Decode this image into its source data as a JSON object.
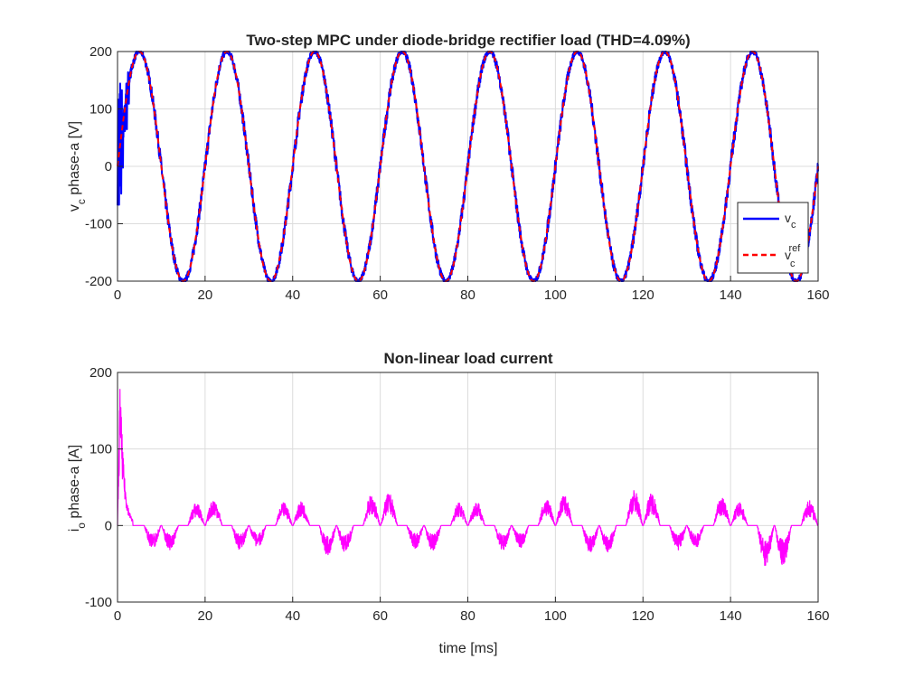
{
  "colors": {
    "vc": "#0000ff",
    "vref": "#ff0000",
    "io": "#ff00ff",
    "grid": "#dcdcdc",
    "axis": "#262626"
  },
  "chart_data": [
    {
      "type": "line",
      "title": "Two-step MPC under diode-bridge rectifier load (THD=4.09%)",
      "xlabel": "",
      "ylabel": {
        "main": "v",
        "sub": "c",
        "rest": " phase-a [V]"
      },
      "xlim": [
        0,
        160
      ],
      "ylim": [
        -200,
        200
      ],
      "xticks": [
        0,
        20,
        40,
        60,
        80,
        100,
        120,
        140,
        160
      ],
      "yticks": [
        -200,
        -100,
        0,
        100,
        200
      ],
      "grid": true,
      "legend_position": "bottom-right",
      "series": [
        {
          "name": "v_c",
          "legend": {
            "main": "v",
            "sub": "c",
            "sup": ""
          },
          "style": "solid",
          "amplitude": 200,
          "frequency_hz": 50,
          "startup_transient_ms": [
            0,
            3
          ],
          "ripple": "high-frequency switching ripple"
        },
        {
          "name": "v_c^ref",
          "legend": {
            "main": "v",
            "sub": "c",
            "sup": "ref"
          },
          "style": "dashed",
          "amplitude": 200,
          "frequency_hz": 50
        }
      ]
    },
    {
      "type": "line",
      "title": "Non-linear load current",
      "xlabel": "time [ms]",
      "ylabel": {
        "main": "i",
        "sub": "o",
        "rest": " phase-a [A]"
      },
      "xlim": [
        0,
        160
      ],
      "ylim": [
        -100,
        200
      ],
      "xticks": [
        0,
        20,
        40,
        60,
        80,
        100,
        120,
        140,
        160
      ],
      "yticks": [
        -100,
        0,
        100,
        200
      ],
      "grid": true,
      "series": [
        {
          "name": "i_o",
          "startup_peak": {
            "x": 0.6,
            "y": 195
          },
          "pulses": [
            {
              "center": 8,
              "peak": -30
            },
            {
              "center": 12,
              "peak": -32
            },
            {
              "center": 18,
              "peak": 30
            },
            {
              "center": 22,
              "peak": 35
            },
            {
              "center": 28,
              "peak": -32
            },
            {
              "center": 32,
              "peak": -30
            },
            {
              "center": 38,
              "peak": 30
            },
            {
              "center": 42,
              "peak": 31
            },
            {
              "center": 48,
              "peak": -40
            },
            {
              "center": 52,
              "peak": -35
            },
            {
              "center": 58,
              "peak": 40
            },
            {
              "center": 62,
              "peak": 42
            },
            {
              "center": 68,
              "peak": -30
            },
            {
              "center": 72,
              "peak": -33
            },
            {
              "center": 78,
              "peak": 30
            },
            {
              "center": 82,
              "peak": 31
            },
            {
              "center": 88,
              "peak": -32
            },
            {
              "center": 92,
              "peak": -30
            },
            {
              "center": 98,
              "peak": 35
            },
            {
              "center": 102,
              "peak": 40
            },
            {
              "center": 108,
              "peak": -36
            },
            {
              "center": 112,
              "peak": -35
            },
            {
              "center": 118,
              "peak": 47
            },
            {
              "center": 122,
              "peak": 43
            },
            {
              "center": 128,
              "peak": -32
            },
            {
              "center": 132,
              "peak": -30
            },
            {
              "center": 138,
              "peak": 38
            },
            {
              "center": 142,
              "peak": 30
            },
            {
              "center": 148,
              "peak": -53
            },
            {
              "center": 152,
              "peak": -52
            },
            {
              "center": 158,
              "peak": 33
            }
          ]
        }
      ]
    }
  ]
}
